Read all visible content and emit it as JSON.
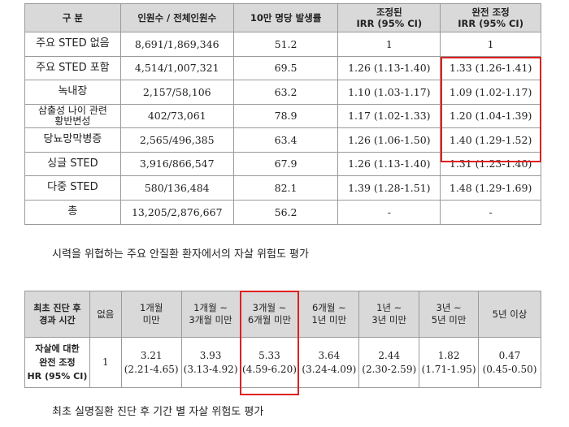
{
  "table1": {
    "headers": [
      "구 분",
      "인원수 / 전체인원수",
      "10만 명당 발생률",
      "조정된\nIRR (95% CI)",
      "완전 조정\nIRR (95% CI)"
    ],
    "rows": [
      [
        "주요 STED 없음",
        "8,691/1,869,346",
        "51.2",
        "1",
        "1"
      ],
      [
        "주요 STED 포함",
        "4,514/1,007,321",
        "69.5",
        "1.26 (1.13-1.40)",
        "1.33 (1.26-1.41)"
      ],
      [
        "녹내장",
        "2,157/58,106",
        "63.2",
        "1.10 (1.03-1.17)",
        "1.09 (1.02-1.17)"
      ],
      [
        "삼출성 나이 관련\n황반변성",
        "402/73,061",
        "78.9",
        "1.17 (1.02-1.33)",
        "1.20 (1.04-1.39)"
      ],
      [
        "당뇨망막병증",
        "2,565/496,385",
        "63.4",
        "1.26 (1.06-1.50)",
        "1.40 (1.29-1.52)"
      ],
      [
        "싱글 STED",
        "3,916/866,547",
        "67.9",
        "1.26 (1.13-1.40)",
        "1.31 (1.23-1.40)"
      ],
      [
        "다중 STED",
        "580/136,484",
        "82.1",
        "1.39 (1.28-1.51)",
        "1.48 (1.29-1.69)"
      ],
      [
        "총",
        "13,205/2,876,667",
        "56.2",
        "-",
        "-"
      ]
    ]
  },
  "caption1": "시력을 위협하는 주요 안질환 환자에서의 자살 위험도 평가",
  "table2": {
    "row_header_1": "최초 진단 후\n경과 시간",
    "headers": [
      "없음",
      "1개월\n미만",
      "1개월 ~\n3개월 미만",
      "3개월 ~\n6개월 미만",
      "6개월 ~\n1년 미만",
      "1년 ~\n3년 미만",
      "3년 ~\n5년 미만",
      "5년 이상"
    ],
    "row_header_2": "자살에 대한\n완전 조정\nHR (95% CI)",
    "values": [
      "1",
      "3.21\n(2.21-4.65)",
      "3.93\n(3.13-4.92)",
      "5.33\n(4.59-6.20)",
      "3.64\n(3.24-4.09)",
      "2.44\n(2.30-2.59)",
      "1.82\n(1.71-1.95)",
      "0.47\n(0.45-0.50)"
    ]
  },
  "caption2": "최초 실명질환 진단 후 기간 별 자살 위험도 평가",
  "colors": {
    "header_bg": "#d9d9d9",
    "highlight_border": "#e02020",
    "grid": "#9a9a9a"
  }
}
